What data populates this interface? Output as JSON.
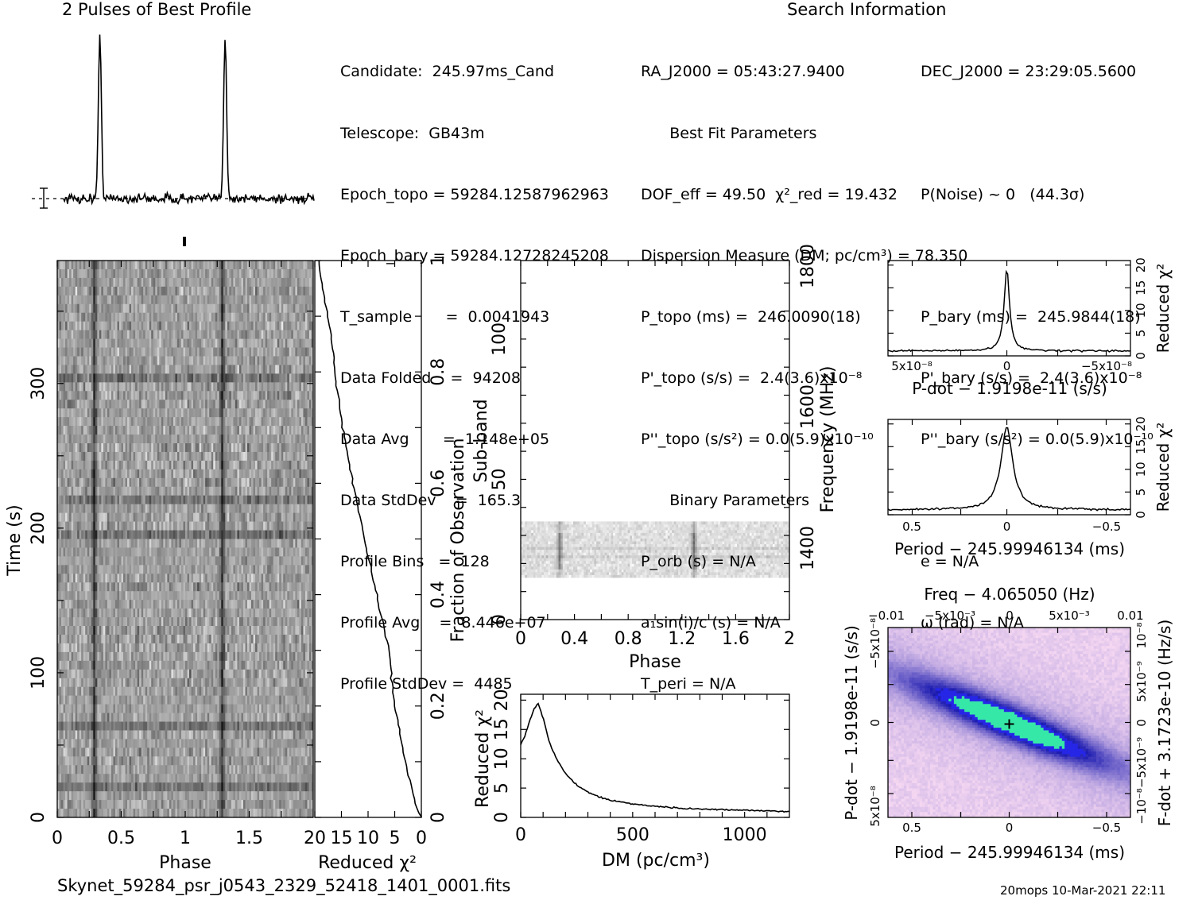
{
  "headings": {
    "profile_title": "2 Pulses of Best Profile",
    "search_title": "Search Information"
  },
  "info_col1": [
    "Candidate:  245.97ms_Cand",
    "Telescope:  GB43m",
    "Epoch_topo = 59284.12587962963",
    "Epoch_bary = 59284.12728245208",
    "T_sample       =  0.0041943",
    "Data Folded    =  94208",
    "Data Avg       =  1.148e+05",
    "Data StdDev    =  165.3",
    "Profile Bins   =  128",
    "Profile Avg    =  8.446e+07",
    "Profile StdDev =  4485"
  ],
  "info_col2": [
    "RA_J2000 = 05:43:27.9400",
    "      Best Fit Parameters",
    "DOF_eff = 49.50  χ²_red = 19.432",
    "Dispersion Measure (DM; pc/cm³) = 78.350",
    "P_topo (ms) =  246.0090(18)",
    "P'_topo (s/s) =  2.4(3.6)x10⁻⁸",
    "P''_topo (s/s²) = 0.0(5.9)x10⁻¹⁰",
    "      Binary Parameters",
    "P_orb (s) = N/A",
    "a₁sin(i)/c (s) = N/A",
    "T_peri = N/A"
  ],
  "info_col3": [
    "DEC_J2000 = 23:29:05.5600",
    "",
    "P(Noise) ~ 0   (44.3σ)",
    "",
    "P_bary (ms) =  245.9844(18)",
    "P'_bary (s/s) =  2.4(3.6)x10⁻⁸",
    "P''_bary (s/s²) = 0.0(5.9)x10⁻¹⁰",
    "",
    "e = N/A",
    "ω (rad) = N/A",
    ""
  ],
  "footer": {
    "filename": "Skynet_59284_psr_j0543_2329_52418_1401_0001.fits",
    "stamp": "20mops 10-Mar-2021 22:11"
  },
  "colors": {
    "ink": "#000000",
    "pdot_low": "#f6d8f2",
    "pdot_mid": "#1a1ab0",
    "pdot_high": "#36e8a8",
    "pdot_peak": "#00b300"
  },
  "chart_data": [
    {
      "id": "profile",
      "type": "line",
      "title": "2 Pulses of Best Profile",
      "x": "phase 0–2 (2 pulses)",
      "peaks_at_phase": [
        0.29,
        1.29
      ],
      "series": [
        {
          "values_description_points": [
            [
              0,
              0.02
            ],
            [
              0.1,
              -0.03
            ],
            [
              0.2,
              0.01
            ],
            [
              0.27,
              0.15
            ],
            [
              0.29,
              1.0
            ],
            [
              0.31,
              0.15
            ],
            [
              0.4,
              -0.02
            ],
            [
              0.6,
              0.01
            ],
            [
              0.8,
              -0.03
            ],
            [
              1.0,
              0.02
            ],
            [
              1.1,
              -0.03
            ],
            [
              1.2,
              0.01
            ],
            [
              1.27,
              0.15
            ],
            [
              1.29,
              1.0
            ],
            [
              1.31,
              0.15
            ],
            [
              1.4,
              -0.02
            ],
            [
              1.6,
              0.01
            ],
            [
              1.8,
              -0.03
            ],
            [
              2.0,
              0.02
            ]
          ]
        }
      ]
    },
    {
      "id": "time_phase",
      "type": "heatmap",
      "xlabel": "Phase",
      "ylabel": "Time (s)",
      "x_ticks": [
        "0",
        "0.5",
        "1",
        "1.5"
      ],
      "y_ticks": [
        "0",
        "100",
        "200",
        "300"
      ],
      "xlim": [
        0,
        2
      ],
      "ylim": [
        0,
        385
      ],
      "pulse_phase": [
        0.29,
        1.29
      ]
    },
    {
      "id": "cum_chi2",
      "type": "line",
      "xlabel": "Reduced χ²",
      "ylabel": "Fraction of Observation",
      "x_ticks": [
        "20",
        "15",
        "10",
        "5",
        "0"
      ],
      "y_ticks": [
        "0",
        "0.2",
        "0.4",
        "0.6",
        "0.8",
        "1"
      ],
      "xlim": [
        20,
        0
      ],
      "ylim": [
        0,
        1
      ],
      "series": [
        {
          "x": [
            0,
            1,
            2,
            3,
            5,
            6,
            8,
            10,
            12,
            14,
            16,
            17,
            18.5,
            19.4
          ],
          "y": [
            0,
            0.02,
            0.06,
            0.1,
            0.2,
            0.3,
            0.38,
            0.47,
            0.56,
            0.66,
            0.78,
            0.87,
            0.95,
            1.0
          ]
        }
      ]
    },
    {
      "id": "subband_phase",
      "type": "heatmap",
      "xlabel": "Phase",
      "ylabel": "Sub-band",
      "y2label": "Frequency (MHz)",
      "x_ticks": [
        "0",
        "0.4",
        "0.8",
        "1.2",
        "1.6",
        "2"
      ],
      "y_ticks": [
        "0",
        "50",
        "100"
      ],
      "y2_ticks": [
        "1400",
        "1600",
        "1800"
      ],
      "xlim": [
        0,
        2
      ],
      "ylim": [
        0,
        128
      ],
      "data_subbands": [
        15,
        35
      ],
      "pulse_phase": [
        0.29,
        1.29
      ]
    },
    {
      "id": "dm_chi2",
      "type": "line",
      "xlabel": "DM (pc/cm³)",
      "ylabel": "Reduced χ²",
      "x_ticks": [
        "0",
        "500",
        "1000"
      ],
      "y_ticks": [
        "0",
        "5",
        "10",
        "15",
        "20"
      ],
      "xlim": [
        0,
        1200
      ],
      "ylim": [
        0,
        21
      ],
      "series": [
        {
          "x": [
            0,
            20,
            40,
            60,
            78,
            100,
            130,
            160,
            200,
            250,
            300,
            350,
            400,
            500,
            600,
            700,
            800,
            900,
            1000,
            1100,
            1200
          ],
          "y": [
            12.5,
            14,
            16.5,
            18.5,
            19.4,
            17,
            12.5,
            10,
            7.5,
            5.5,
            4.3,
            3.5,
            2.9,
            2.3,
            1.9,
            1.6,
            1.4,
            1.3,
            1.2,
            1.1,
            1.0
          ]
        }
      ]
    },
    {
      "id": "pdot_chi2",
      "type": "line",
      "xlabel": "P-dot − 1.9198e-11 (s/s)",
      "ylabel": "Reduced χ²",
      "x_ticks": [
        "5x10⁻⁸",
        "0",
        "−5x10⁻⁸"
      ],
      "y_ticks": [
        "0",
        "5",
        "10",
        "15",
        "20"
      ],
      "ylim": [
        0,
        21
      ]
    },
    {
      "id": "period_chi2",
      "type": "line",
      "xlabel": "Period − 245.99946134 (ms)",
      "ylabel": "Reduced χ²",
      "x_ticks": [
        "0.5",
        "0",
        "−0.5"
      ],
      "y_ticks": [
        "0",
        "5",
        "10",
        "15",
        "20"
      ],
      "ylim": [
        0,
        21
      ]
    },
    {
      "id": "p_pdot",
      "type": "heatmap",
      "title": "Freq − 4.065050 (Hz)",
      "xlabel": "Period − 245.99946134 (ms)",
      "ylabel": "P-dot − 1.9198e-11 (s/s)",
      "y2label": "F-dot + 3.1723e-10 (Hz/s)",
      "x_ticks": [
        "0.5",
        "0",
        "−0.5"
      ],
      "top_ticks": [
        "−0.01",
        "−5x10⁻³",
        "0",
        "5x10⁻³",
        "0.01"
      ],
      "y_ticks": [
        "5x10⁻⁸",
        "0",
        "−5x10⁻⁸"
      ],
      "y2_ticks": [
        "−10⁻⁸",
        "−5x10⁻⁹",
        "0",
        "5x10⁻⁹",
        "10⁻⁸"
      ]
    }
  ]
}
